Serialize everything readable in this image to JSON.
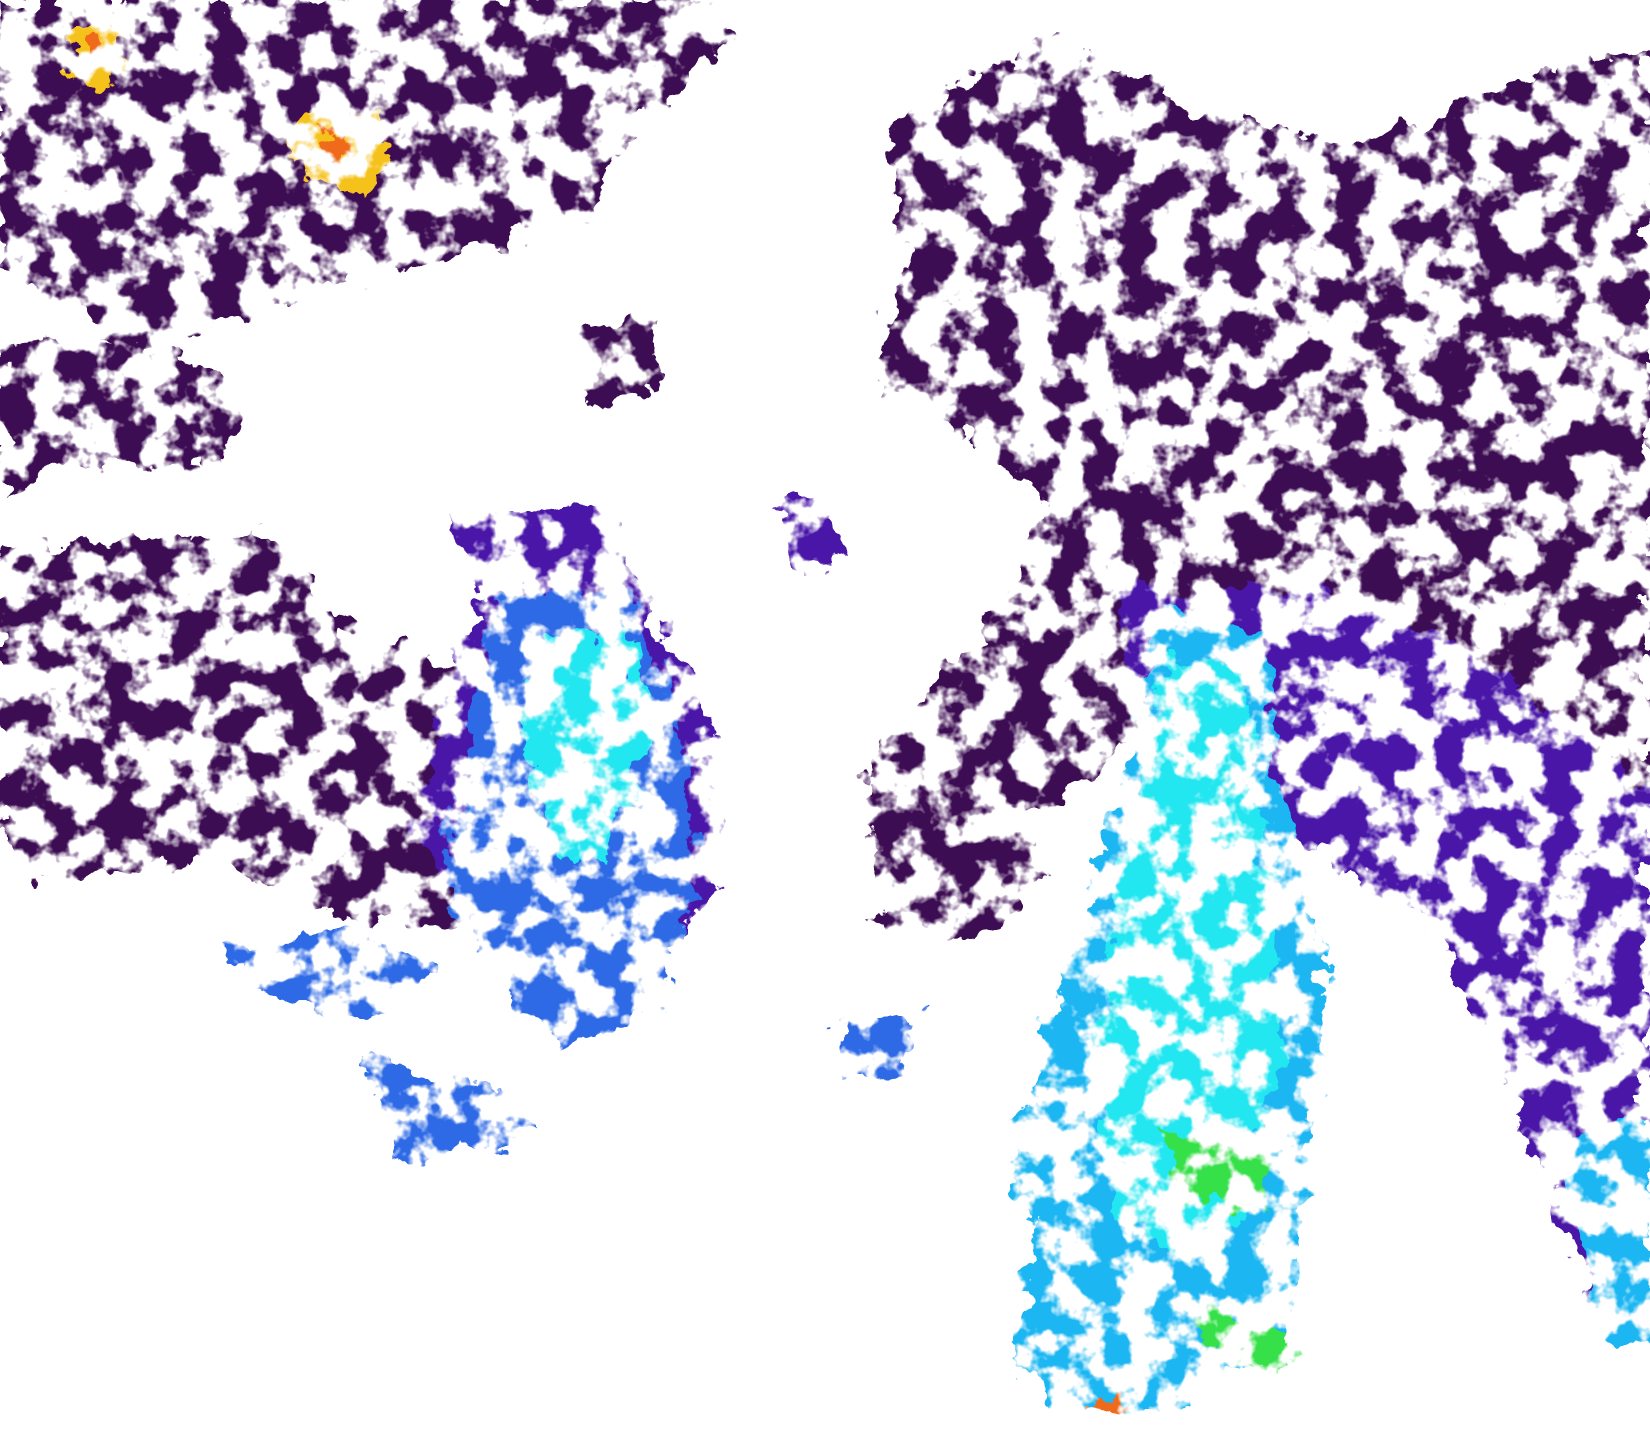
{
  "image": {
    "type": "satellite ocean color composite",
    "background": "#ffffff"
  },
  "palette": {
    "cloud_mask": "#ffffff",
    "very_low": "#3e0752",
    "low": "#4a18a8",
    "medium_low": "#2f6be6",
    "medium": "#1fb6f2",
    "medium_high": "#22e6f0",
    "high": "#35e04a",
    "very_high": "#f5c21a",
    "extreme": "#f06a1c"
  }
}
